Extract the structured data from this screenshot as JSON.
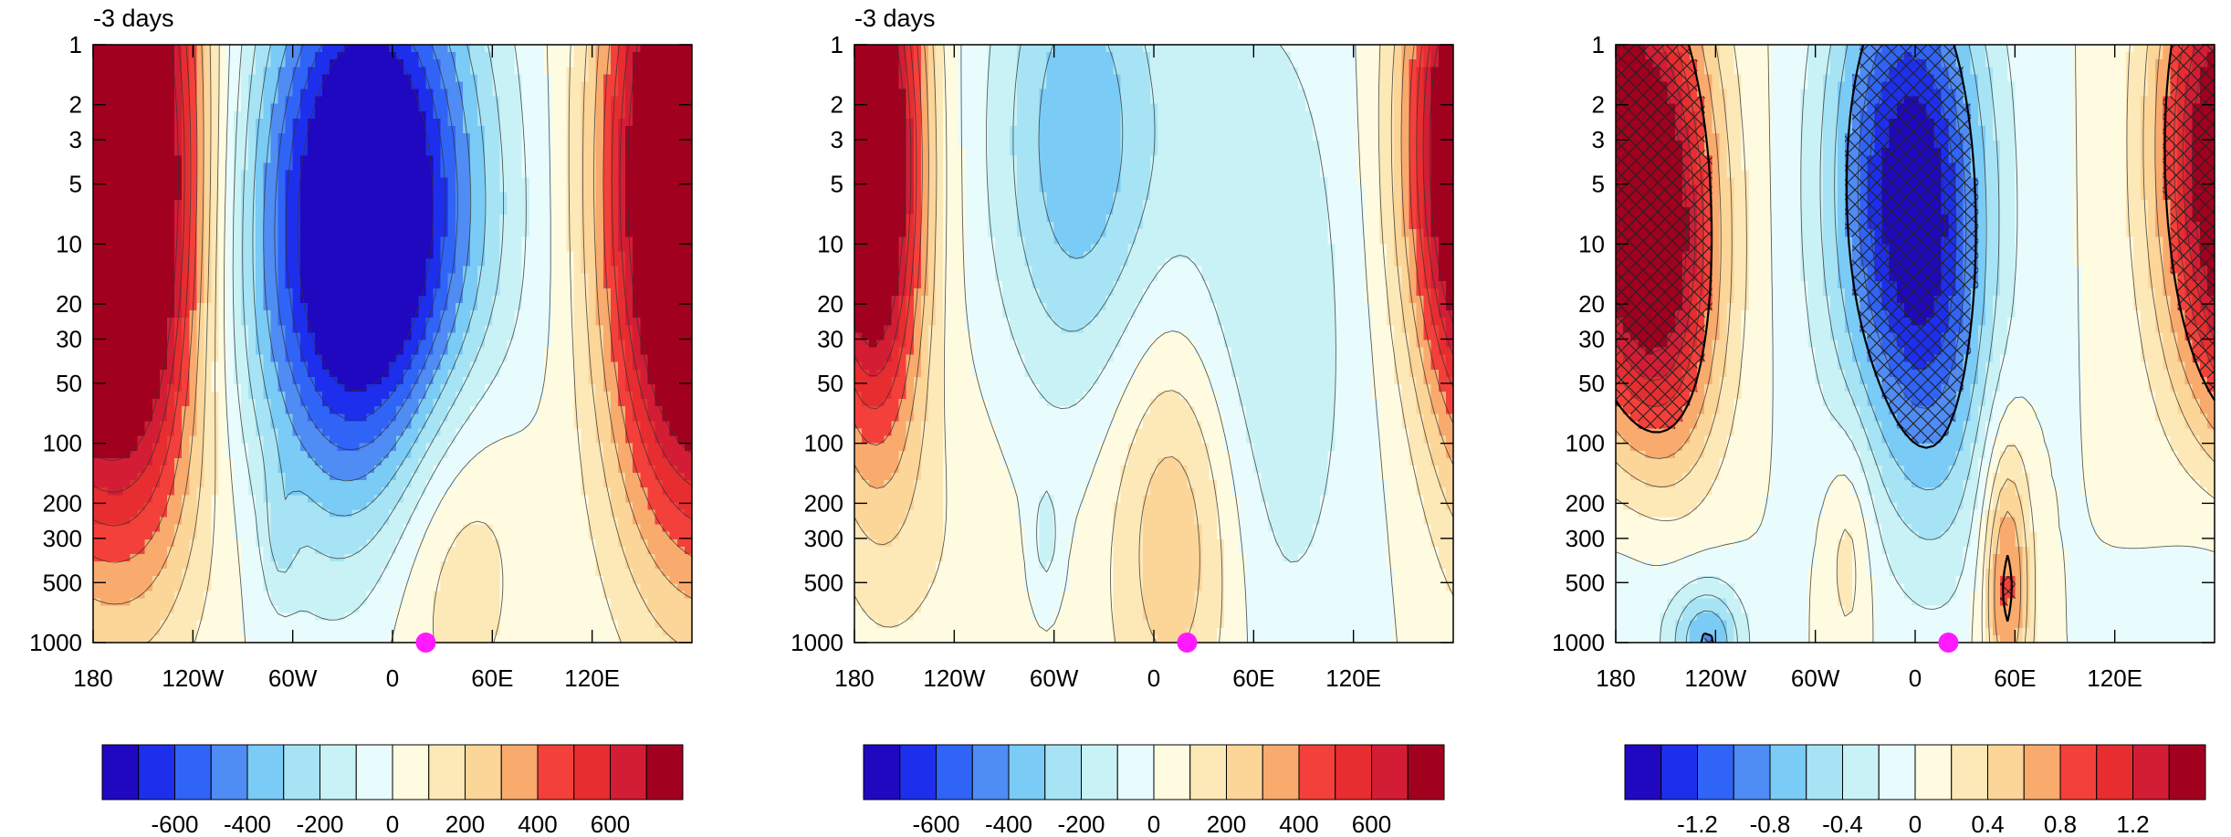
{
  "chart_data": [
    {
      "type": "heatmap",
      "title": "-3 days",
      "xlabel": "",
      "ylabel": "",
      "x_ticks": [
        "180",
        "120W",
        "60W",
        "0",
        "60E",
        "120E"
      ],
      "x_tick_values": [
        -180,
        -120,
        -60,
        0,
        60,
        120
      ],
      "xlim": [
        -180,
        180
      ],
      "y_scale": "log",
      "y_reversed": true,
      "y_ticks": [
        "1",
        "2",
        "3",
        "5",
        "10",
        "20",
        "30",
        "50",
        "100",
        "200",
        "300",
        "500",
        "1000"
      ],
      "y_tick_values": [
        1,
        2,
        3,
        5,
        10,
        20,
        30,
        50,
        100,
        200,
        300,
        500,
        1000
      ],
      "ylim": [
        1000,
        1
      ],
      "marker": {
        "x": 20,
        "y": 1000,
        "color": "#ff1aff"
      },
      "colorbar": {
        "levels": [
          -700,
          -600,
          -500,
          -400,
          -300,
          -200,
          -100,
          0,
          100,
          200,
          300,
          400,
          500,
          600,
          700
        ],
        "tick_labels": [
          "-600",
          "-400",
          "-200",
          "0",
          "200",
          "400",
          "600"
        ],
        "tick_values": [
          -600,
          -400,
          -200,
          0,
          200,
          400,
          600
        ]
      },
      "features": [
        {
          "x": -15,
          "y": 5,
          "value": -900,
          "sx": 45,
          "sy": 0.95
        },
        {
          "x": -20,
          "y": 40,
          "value": -250,
          "sx": 55,
          "sy": 0.8
        },
        {
          "x": -150,
          "y": 5,
          "value": 900,
          "sx": 28,
          "sy": 1.2
        },
        {
          "x": 165,
          "y": 5,
          "value": 900,
          "sx": 30,
          "sy": 1.2
        },
        {
          "x": 35,
          "y": 250,
          "value": 260,
          "sx": 32,
          "sy": 0.7
        },
        {
          "x": -115,
          "y": 200,
          "value": 60,
          "sx": 40,
          "sy": 0.6
        },
        {
          "x": -68,
          "y": 300,
          "value": -130,
          "sx": 7,
          "sy": 0.25
        }
      ]
    },
    {
      "type": "heatmap",
      "title": "-3 days",
      "xlabel": "",
      "ylabel": "",
      "x_ticks": [
        "180",
        "120W",
        "60W",
        "0",
        "60E",
        "120E"
      ],
      "x_tick_values": [
        -180,
        -120,
        -60,
        0,
        60,
        120
      ],
      "xlim": [
        -180,
        180
      ],
      "y_scale": "log",
      "y_reversed": true,
      "y_ticks": [
        "1",
        "2",
        "3",
        "5",
        "10",
        "20",
        "30",
        "50",
        "100",
        "200",
        "300",
        "500",
        "1000"
      ],
      "y_tick_values": [
        1,
        2,
        3,
        5,
        10,
        20,
        30,
        50,
        100,
        200,
        300,
        500,
        1000
      ],
      "ylim": [
        1000,
        1
      ],
      "marker": {
        "x": 20,
        "y": 1000,
        "color": "#ff1aff"
      },
      "colorbar": {
        "levels": [
          -700,
          -600,
          -500,
          -400,
          -300,
          -200,
          -100,
          0,
          100,
          200,
          300,
          400,
          500,
          600,
          700
        ],
        "tick_labels": [
          "-600",
          "-400",
          "-200",
          "0",
          "200",
          "400",
          "600"
        ],
        "tick_values": [
          -600,
          -400,
          -200,
          0,
          200,
          400,
          600
        ]
      },
      "features": [
        {
          "x": -45,
          "y": 3,
          "value": -380,
          "sx": 35,
          "sy": 0.9
        },
        {
          "x": 60,
          "y": 30,
          "value": -230,
          "sx": 40,
          "sy": 1.2
        },
        {
          "x": -165,
          "y": 5,
          "value": 580,
          "sx": 20,
          "sy": 1.0
        },
        {
          "x": 180,
          "y": 3,
          "value": 600,
          "sx": 25,
          "sy": 0.9
        },
        {
          "x": 15,
          "y": 250,
          "value": 350,
          "sx": 30,
          "sy": 0.8
        },
        {
          "x": -130,
          "y": 300,
          "value": 80,
          "sx": 35,
          "sy": 0.6
        },
        {
          "x": -65,
          "y": 300,
          "value": -150,
          "sx": 6,
          "sy": 0.2
        }
      ]
    },
    {
      "type": "heatmap",
      "title": "",
      "xlabel": "",
      "ylabel": "",
      "x_ticks": [
        "180",
        "120W",
        "60W",
        "0",
        "60E",
        "120E"
      ],
      "x_tick_values": [
        -180,
        -120,
        -60,
        0,
        60,
        120
      ],
      "xlim": [
        -180,
        180
      ],
      "y_scale": "log",
      "y_reversed": true,
      "y_ticks": [
        "1",
        "2",
        "3",
        "5",
        "10",
        "20",
        "30",
        "50",
        "100",
        "200",
        "300",
        "500",
        "1000"
      ],
      "y_tick_values": [
        1,
        2,
        3,
        5,
        10,
        20,
        30,
        50,
        100,
        200,
        300,
        500,
        1000
      ],
      "ylim": [
        1000,
        1
      ],
      "marker": {
        "x": 20,
        "y": 1000,
        "color": "#ff1aff"
      },
      "significance_hatching": true,
      "colorbar": {
        "levels": [
          -1.4,
          -1.2,
          -1.0,
          -0.8,
          -0.6,
          -0.4,
          -0.2,
          0,
          0.2,
          0.4,
          0.6,
          0.8,
          1.0,
          1.2,
          1.4
        ],
        "tick_labels": [
          "-1.2",
          "-0.8",
          "-0.4",
          "0",
          "0.4",
          "0.8",
          "1.2"
        ],
        "tick_values": [
          -1.2,
          -0.8,
          -0.4,
          0,
          0.4,
          0.8,
          1.2
        ]
      },
      "features": [
        {
          "x": -5,
          "y": 5,
          "value": -1.5,
          "sx": 32,
          "sy": 0.9
        },
        {
          "x": 15,
          "y": 40,
          "value": -0.4,
          "sx": 22,
          "sy": 0.8
        },
        {
          "x": -150,
          "y": 10,
          "value": 1.4,
          "sx": 25,
          "sy": 0.9
        },
        {
          "x": 175,
          "y": 3,
          "value": 1.2,
          "sx": 25,
          "sy": 0.9
        },
        {
          "x": 55,
          "y": 500,
          "value": 0.9,
          "sx": 10,
          "sy": 0.5
        },
        {
          "x": -40,
          "y": 350,
          "value": 0.35,
          "sx": 10,
          "sy": 0.4
        },
        {
          "x": -160,
          "y": 350,
          "value": -0.3,
          "sx": 30,
          "sy": 0.5
        },
        {
          "x": -125,
          "y": 1000,
          "value": -0.8,
          "sx": 15,
          "sy": 0.2
        }
      ]
    }
  ]
}
